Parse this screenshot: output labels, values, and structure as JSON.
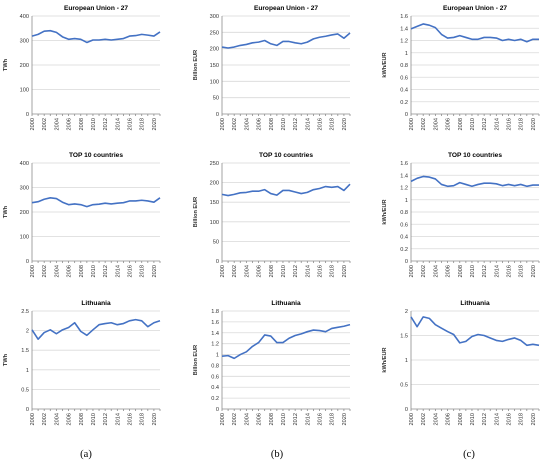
{
  "chart_data": [
    {
      "type": "line",
      "title": "European Union - 27",
      "ylabel": "TWh",
      "ylim": [
        0,
        400
      ],
      "yticks": [
        0,
        100,
        200,
        300,
        400
      ],
      "yformat": "0",
      "grid": true,
      "x": [
        2000,
        2001,
        2002,
        2003,
        2004,
        2005,
        2006,
        2007,
        2008,
        2009,
        2010,
        2011,
        2012,
        2013,
        2014,
        2015,
        2016,
        2017,
        2018,
        2019,
        2020,
        2021
      ],
      "xticks": [
        "2000",
        "2002",
        "2004",
        "2006",
        "2008",
        "2010",
        "2012",
        "2014",
        "2016",
        "2018",
        "2020"
      ],
      "values": [
        318,
        325,
        338,
        340,
        333,
        315,
        305,
        308,
        305,
        292,
        302,
        302,
        305,
        302,
        305,
        308,
        318,
        320,
        325,
        322,
        318,
        335
      ]
    },
    {
      "type": "line",
      "title": "European Union - 27",
      "ylabel": "Billion EUR",
      "ylim": [
        0,
        300
      ],
      "yticks": [
        0,
        50,
        100,
        150,
        200,
        250,
        300
      ],
      "yformat": "0",
      "grid": true,
      "x": [
        2000,
        2001,
        2002,
        2003,
        2004,
        2005,
        2006,
        2007,
        2008,
        2009,
        2010,
        2011,
        2012,
        2013,
        2014,
        2015,
        2016,
        2017,
        2018,
        2019,
        2020,
        2021
      ],
      "xticks": [
        "2000",
        "2002",
        "2004",
        "2006",
        "2008",
        "2010",
        "2012",
        "2014",
        "2016",
        "2018",
        "2020"
      ],
      "values": [
        205,
        202,
        205,
        210,
        213,
        218,
        220,
        225,
        215,
        210,
        222,
        222,
        218,
        215,
        220,
        230,
        235,
        238,
        242,
        245,
        232,
        248
      ]
    },
    {
      "type": "line",
      "title": "European Union - 27",
      "ylabel": "kWh/EUR",
      "ylim": [
        0,
        1.6
      ],
      "yticks": [
        0,
        0.2,
        0.4,
        0.6,
        0.8,
        1,
        1.2,
        1.4,
        1.6
      ],
      "yformat": "0.#",
      "grid": true,
      "x": [
        2000,
        2001,
        2002,
        2003,
        2004,
        2005,
        2006,
        2007,
        2008,
        2009,
        2010,
        2011,
        2012,
        2013,
        2014,
        2015,
        2016,
        2017,
        2018,
        2019,
        2020,
        2021
      ],
      "xticks": [
        "2000",
        "2002",
        "2004",
        "2006",
        "2008",
        "2010",
        "2012",
        "2014",
        "2016",
        "2018",
        "2020"
      ],
      "values": [
        1.39,
        1.43,
        1.47,
        1.45,
        1.41,
        1.3,
        1.24,
        1.25,
        1.28,
        1.25,
        1.22,
        1.22,
        1.25,
        1.25,
        1.24,
        1.2,
        1.22,
        1.2,
        1.22,
        1.18,
        1.22,
        1.22
      ]
    },
    {
      "type": "line",
      "title": "TOP 10 countries",
      "ylabel": "TWh",
      "ylim": [
        0,
        400
      ],
      "yticks": [
        0,
        100,
        200,
        300,
        400
      ],
      "yformat": "0",
      "grid": true,
      "x": [
        2000,
        2001,
        2002,
        2003,
        2004,
        2005,
        2006,
        2007,
        2008,
        2009,
        2010,
        2011,
        2012,
        2013,
        2014,
        2015,
        2016,
        2017,
        2018,
        2019,
        2020,
        2021
      ],
      "xticks": [
        "2000",
        "2002",
        "2004",
        "2006",
        "2008",
        "2010",
        "2012",
        "2014",
        "2016",
        "2018",
        "2020"
      ],
      "values": [
        238,
        242,
        252,
        258,
        255,
        240,
        230,
        233,
        230,
        222,
        230,
        232,
        236,
        233,
        236,
        238,
        245,
        245,
        248,
        245,
        240,
        258
      ]
    },
    {
      "type": "line",
      "title": "TOP 10 countries",
      "ylabel": "Billion EUR",
      "ylim": [
        0,
        250
      ],
      "yticks": [
        0,
        50,
        100,
        150,
        200,
        250
      ],
      "yformat": "0",
      "grid": true,
      "x": [
        2000,
        2001,
        2002,
        2003,
        2004,
        2005,
        2006,
        2007,
        2008,
        2009,
        2010,
        2011,
        2012,
        2013,
        2014,
        2015,
        2016,
        2017,
        2018,
        2019,
        2020,
        2021
      ],
      "xticks": [
        "2000",
        "2002",
        "2004",
        "2006",
        "2008",
        "2010",
        "2012",
        "2014",
        "2016",
        "2018",
        "2020"
      ],
      "values": [
        170,
        167,
        170,
        174,
        175,
        178,
        178,
        182,
        172,
        168,
        180,
        180,
        176,
        172,
        175,
        182,
        185,
        190,
        188,
        190,
        180,
        196
      ]
    },
    {
      "type": "line",
      "title": "TOP 10 countries",
      "ylabel": "kWh/EUR",
      "ylim": [
        0,
        1.6
      ],
      "yticks": [
        0,
        0.2,
        0.4,
        0.6,
        0.8,
        1,
        1.2,
        1.4,
        1.6
      ],
      "yformat": "0.#",
      "grid": true,
      "x": [
        2000,
        2001,
        2002,
        2003,
        2004,
        2005,
        2006,
        2007,
        2008,
        2009,
        2010,
        2011,
        2012,
        2013,
        2014,
        2015,
        2016,
        2017,
        2018,
        2019,
        2020,
        2021
      ],
      "xticks": [
        "2000",
        "2002",
        "2004",
        "2006",
        "2008",
        "2010",
        "2012",
        "2014",
        "2016",
        "2018",
        "2020"
      ],
      "values": [
        1.3,
        1.35,
        1.38,
        1.37,
        1.34,
        1.25,
        1.22,
        1.23,
        1.28,
        1.25,
        1.22,
        1.25,
        1.27,
        1.27,
        1.26,
        1.23,
        1.25,
        1.23,
        1.25,
        1.22,
        1.24,
        1.24
      ]
    },
    {
      "type": "line",
      "title": "Lithuania",
      "ylabel": "TWh",
      "ylim": [
        0,
        2.5
      ],
      "yticks": [
        0,
        0.5,
        1,
        1.5,
        2,
        2.5
      ],
      "yformat": "0.#",
      "grid": true,
      "x": [
        2000,
        2001,
        2002,
        2003,
        2004,
        2005,
        2006,
        2007,
        2008,
        2009,
        2010,
        2011,
        2012,
        2013,
        2014,
        2015,
        2016,
        2017,
        2018,
        2019,
        2020,
        2021
      ],
      "xticks": [
        "2000",
        "2002",
        "2004",
        "2006",
        "2008",
        "2010",
        "2012",
        "2014",
        "2016",
        "2018",
        "2020"
      ],
      "values": [
        2.02,
        1.78,
        1.95,
        2.02,
        1.92,
        2.02,
        2.08,
        2.2,
        1.98,
        1.88,
        2.02,
        2.15,
        2.18,
        2.2,
        2.15,
        2.18,
        2.25,
        2.28,
        2.25,
        2.1,
        2.2,
        2.25
      ]
    },
    {
      "type": "line",
      "title": "Lithuania",
      "ylabel": "Billion EUR",
      "ylim": [
        0,
        1.8
      ],
      "yticks": [
        0,
        0.2,
        0.4,
        0.6,
        0.8,
        1,
        1.2,
        1.4,
        1.6,
        1.8
      ],
      "yformat": "0.#",
      "grid": true,
      "x": [
        2000,
        2001,
        2002,
        2003,
        2004,
        2005,
        2006,
        2007,
        2008,
        2009,
        2010,
        2011,
        2012,
        2013,
        2014,
        2015,
        2016,
        2017,
        2018,
        2019,
        2020,
        2021
      ],
      "xticks": [
        "2000",
        "2002",
        "2004",
        "2006",
        "2008",
        "2010",
        "2012",
        "2014",
        "2016",
        "2018",
        "2020"
      ],
      "values": [
        0.97,
        0.98,
        0.93,
        1.0,
        1.05,
        1.15,
        1.22,
        1.36,
        1.34,
        1.22,
        1.22,
        1.3,
        1.35,
        1.38,
        1.42,
        1.45,
        1.44,
        1.42,
        1.48,
        1.5,
        1.52,
        1.55
      ]
    },
    {
      "type": "line",
      "title": "Lithuania",
      "ylabel": "kWh/EUR",
      "ylim": [
        0,
        2
      ],
      "yticks": [
        0,
        0.5,
        1,
        1.5,
        2
      ],
      "yformat": "0.#",
      "grid": true,
      "x": [
        2000,
        2001,
        2002,
        2003,
        2004,
        2005,
        2006,
        2007,
        2008,
        2009,
        2010,
        2011,
        2012,
        2013,
        2014,
        2015,
        2016,
        2017,
        2018,
        2019,
        2020,
        2021
      ],
      "xticks": [
        "2000",
        "2002",
        "2004",
        "2006",
        "2008",
        "2010",
        "2012",
        "2014",
        "2016",
        "2018",
        "2020"
      ],
      "values": [
        1.88,
        1.68,
        1.88,
        1.85,
        1.72,
        1.65,
        1.58,
        1.52,
        1.35,
        1.38,
        1.48,
        1.52,
        1.5,
        1.45,
        1.4,
        1.38,
        1.42,
        1.45,
        1.4,
        1.3,
        1.32,
        1.3
      ]
    }
  ],
  "subfigure_labels": [
    "(a)",
    "(b)",
    "(c)"
  ],
  "colors": {
    "series": "#4472c4",
    "grid": "#d9d9d9",
    "axis": "#8c8c8c"
  }
}
